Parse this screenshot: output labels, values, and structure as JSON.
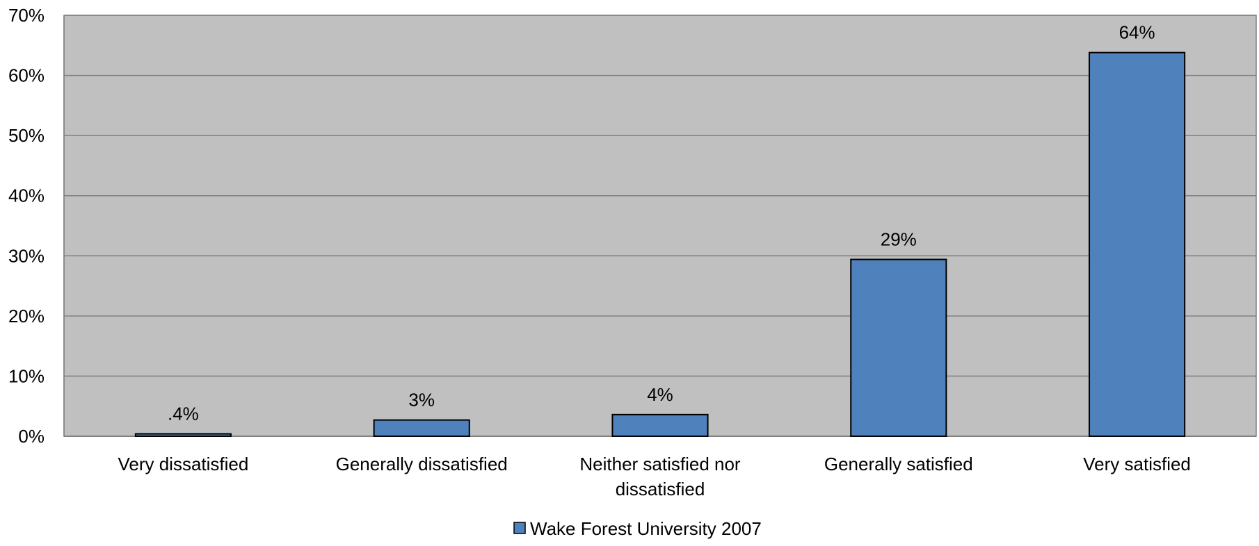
{
  "chart_data": {
    "type": "bar",
    "categories": [
      [
        "Very dissatisfied"
      ],
      [
        "Generally dissatisfied"
      ],
      [
        "Neither satisfied nor",
        "dissatisfied"
      ],
      [
        "Generally satisfied"
      ],
      [
        "Very satisfied"
      ]
    ],
    "series": [
      {
        "name": "Wake Forest University 2007",
        "values": [
          0.4,
          2.7,
          3.6,
          29.4,
          63.8
        ],
        "data_labels": [
          ".4%",
          "3%",
          "4%",
          "29%",
          "64%"
        ]
      }
    ],
    "ylim": [
      0,
      70
    ],
    "yticks": [
      0,
      10,
      20,
      30,
      40,
      50,
      60,
      70
    ],
    "ytick_labels": [
      "0%",
      "10%",
      "20%",
      "30%",
      "40%",
      "50%",
      "60%",
      "70%"
    ],
    "grid": true,
    "legend": "bottom",
    "colors": {
      "plot_background": "#C0C0C0",
      "bar_fill": "#4F81BD",
      "bar_stroke": "#000000",
      "grid": "#808080"
    }
  }
}
